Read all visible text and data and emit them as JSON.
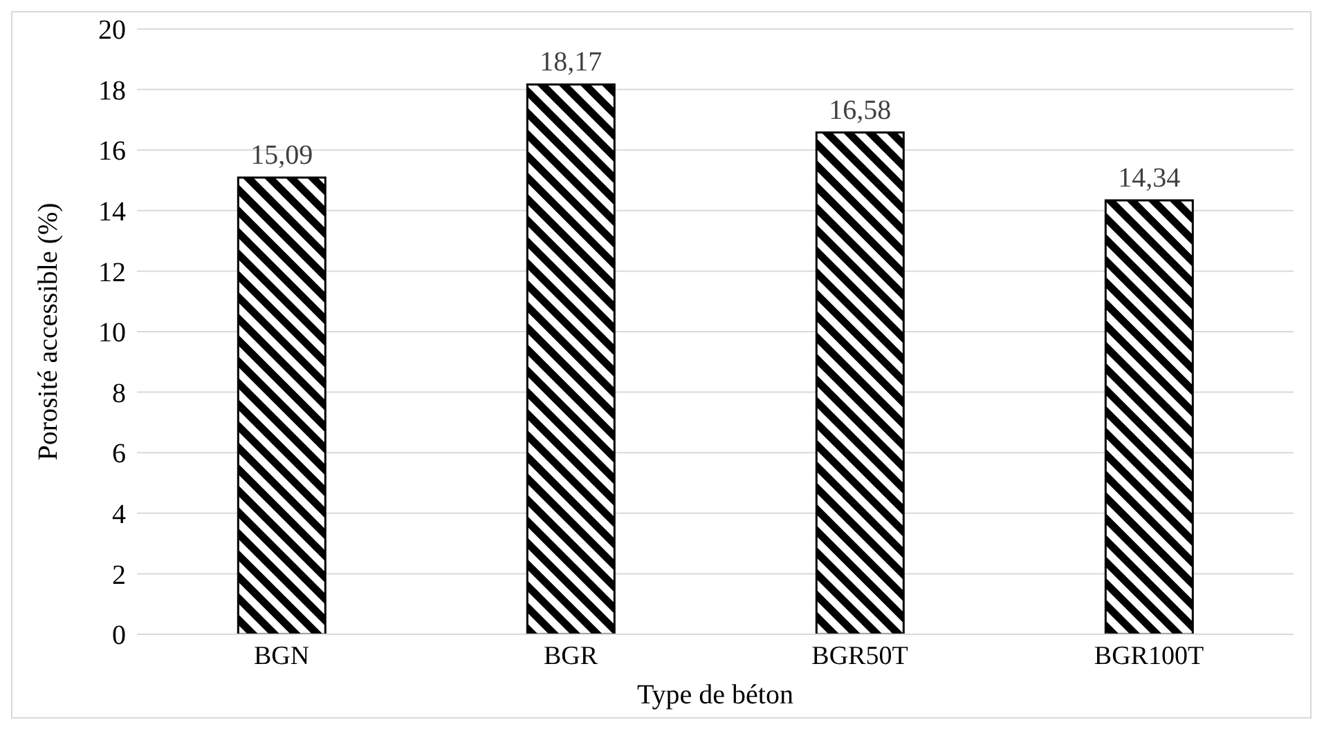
{
  "chart_data": {
    "type": "bar",
    "xlabel": "Type de béton",
    "ylabel": "Porosité accessible (%)",
    "categories": [
      "BGN",
      "BGR",
      "BGR50T",
      "BGR100T"
    ],
    "values": [
      15.09,
      18.17,
      16.58,
      14.34
    ],
    "value_labels": [
      "15,09",
      "18,17",
      "16,58",
      "14,34"
    ],
    "color": "#000000",
    "ylim": [
      0,
      20
    ],
    "yticks": [
      0,
      2,
      4,
      6,
      8,
      10,
      12,
      14,
      16,
      18,
      20
    ],
    "grid": "y"
  }
}
